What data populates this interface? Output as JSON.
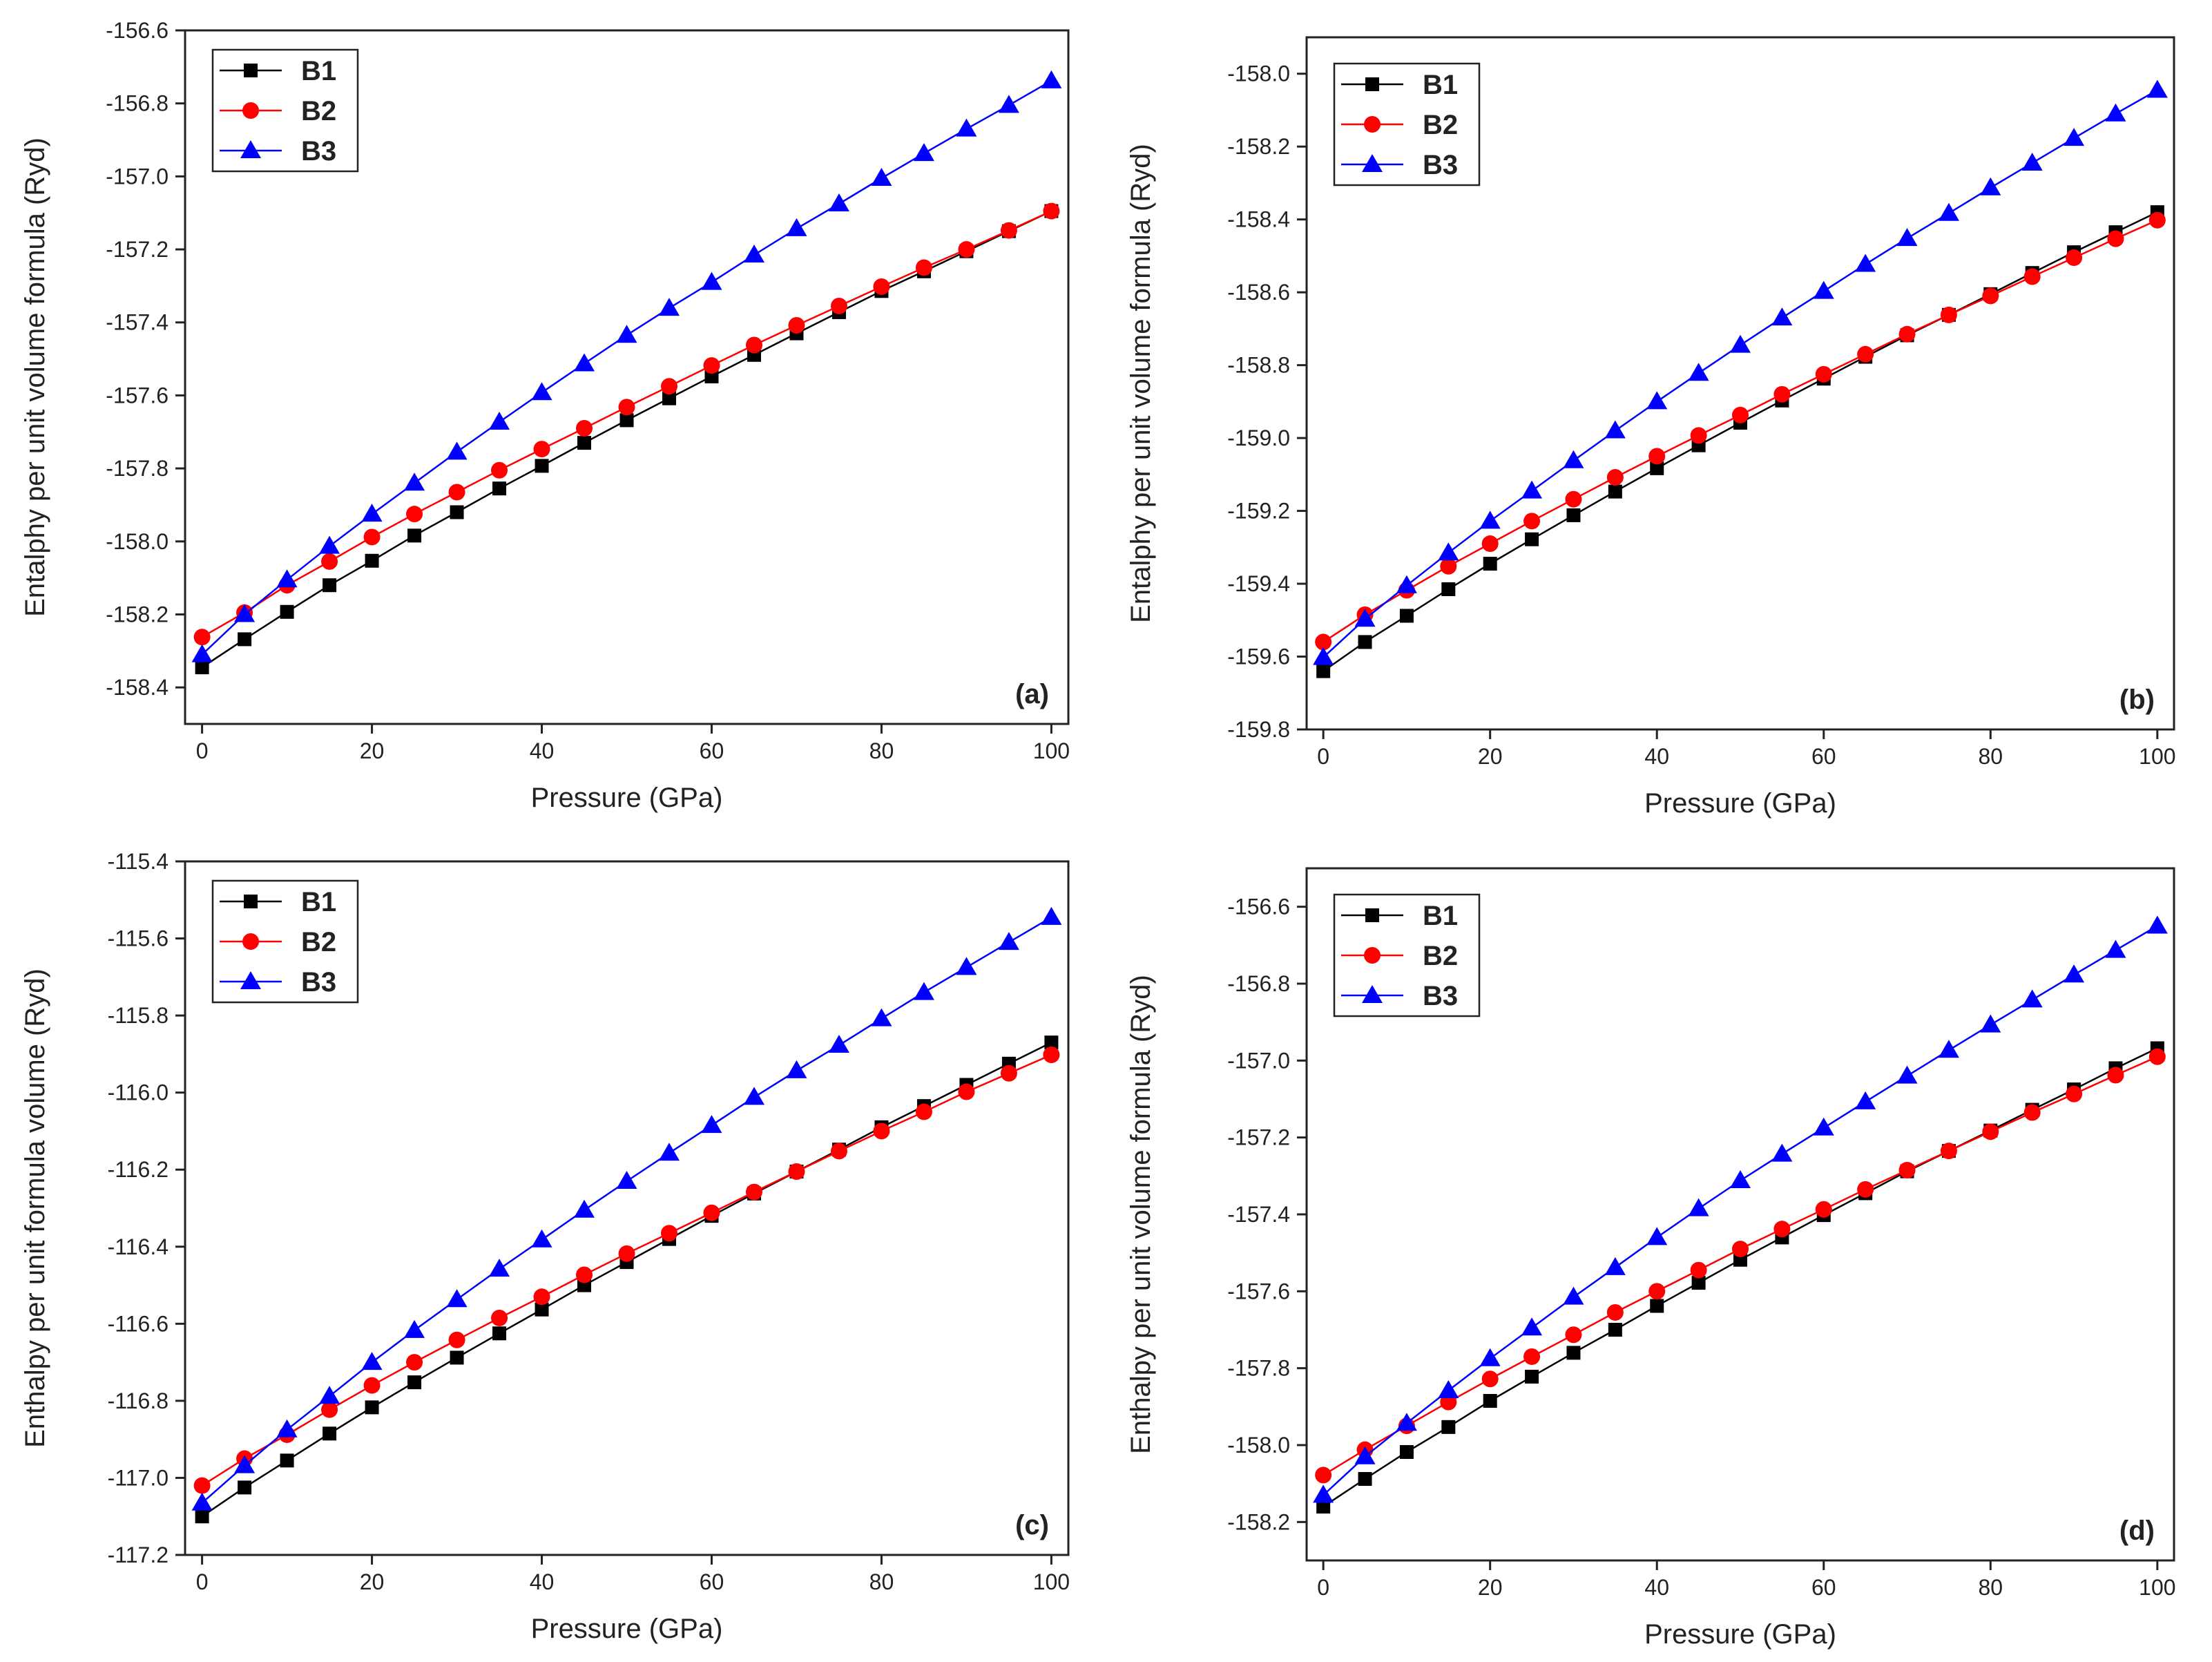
{
  "series_styles": [
    {
      "name": "B1",
      "color": "#000000",
      "marker": "square"
    },
    {
      "name": "B2",
      "color": "#ff0000",
      "marker": "circle"
    },
    {
      "name": "B3",
      "color": "#0000ff",
      "marker": "triangle"
    }
  ],
  "chart_data": [
    {
      "type": "line",
      "panel_label": "(a)",
      "xlabel": "Pressure (GPa)",
      "ylabel": "Entalphy per unit volume formula (Ryd)",
      "xlim": [
        -2,
        102
      ],
      "ylim": [
        -158.5,
        -156.6
      ],
      "xticks": [
        0,
        20,
        40,
        60,
        80,
        100
      ],
      "yticks": [
        -158.4,
        -158.2,
        -158.0,
        -157.8,
        -157.6,
        -157.4,
        -157.2,
        -157.0,
        -156.8,
        -156.6
      ],
      "legend": "top-left",
      "x": [
        0,
        5,
        10,
        15,
        20,
        25,
        30,
        35,
        40,
        45,
        50,
        55,
        60,
        65,
        70,
        75,
        80,
        85,
        90,
        95,
        100
      ],
      "series": [
        {
          "name": "B1",
          "values": [
            -158.345,
            -158.268,
            -158.193,
            -158.12,
            -158.053,
            -157.984,
            -157.92,
            -157.855,
            -157.793,
            -157.73,
            -157.668,
            -157.608,
            -157.548,
            -157.489,
            -157.43,
            -157.372,
            -157.314,
            -157.26,
            -157.205,
            -157.15,
            -157.095
          ]
        },
        {
          "name": "B2",
          "values": [
            -158.262,
            -158.195,
            -158.12,
            -158.055,
            -157.988,
            -157.925,
            -157.865,
            -157.805,
            -157.747,
            -157.69,
            -157.632,
            -157.575,
            -157.518,
            -157.462,
            -157.408,
            -157.355,
            -157.302,
            -157.25,
            -157.2,
            -157.148,
            -157.095
          ]
        },
        {
          "name": "B3",
          "values": [
            -158.31,
            -158.2,
            -158.105,
            -158.013,
            -157.925,
            -157.84,
            -157.755,
            -157.673,
            -157.592,
            -157.513,
            -157.435,
            -157.361,
            -157.29,
            -157.215,
            -157.143,
            -157.075,
            -157.005,
            -156.937,
            -156.87,
            -156.805,
            -156.738
          ]
        }
      ]
    },
    {
      "type": "line",
      "panel_label": "(b)",
      "xlabel": "Pressure (GPa)",
      "ylabel": "Entalphy per unit volume formula (Ryd)",
      "xlim": [
        -2,
        102
      ],
      "ylim": [
        -159.8,
        -157.9
      ],
      "xticks": [
        0,
        20,
        40,
        60,
        80,
        100
      ],
      "yticks": [
        -159.8,
        -159.6,
        -159.4,
        -159.2,
        -159.0,
        -158.8,
        -158.6,
        -158.4,
        -158.2,
        -158.0
      ],
      "legend": "top-left",
      "x": [
        0,
        5,
        10,
        15,
        20,
        25,
        30,
        35,
        40,
        45,
        50,
        55,
        60,
        65,
        70,
        75,
        80,
        85,
        90,
        95,
        100
      ],
      "series": [
        {
          "name": "B1",
          "values": [
            -159.64,
            -159.56,
            -159.488,
            -159.415,
            -159.345,
            -159.278,
            -159.212,
            -159.147,
            -159.083,
            -159.02,
            -158.958,
            -158.897,
            -158.837,
            -158.777,
            -158.718,
            -158.662,
            -158.605,
            -158.547,
            -158.49,
            -158.435,
            -158.38
          ]
        },
        {
          "name": "B2",
          "values": [
            -159.56,
            -159.485,
            -159.418,
            -159.352,
            -159.29,
            -159.228,
            -159.168,
            -159.108,
            -159.05,
            -158.993,
            -158.937,
            -158.88,
            -158.825,
            -158.77,
            -158.715,
            -158.662,
            -158.61,
            -158.557,
            -158.505,
            -158.453,
            -158.402
          ]
        },
        {
          "name": "B3",
          "values": [
            -159.602,
            -159.497,
            -159.405,
            -159.315,
            -159.228,
            -159.145,
            -159.062,
            -158.98,
            -158.9,
            -158.822,
            -158.745,
            -158.67,
            -158.597,
            -158.523,
            -158.452,
            -158.383,
            -158.313,
            -158.245,
            -158.177,
            -158.11,
            -158.045
          ]
        }
      ]
    },
    {
      "type": "line",
      "panel_label": "(c)",
      "xlabel": "Pressure (GPa)",
      "ylabel": "Enthalpy per unit formula volume (Ryd)",
      "xlim": [
        -2,
        102
      ],
      "ylim": [
        -117.2,
        -115.4
      ],
      "xticks": [
        0,
        20,
        40,
        60,
        80,
        100
      ],
      "yticks": [
        -117.2,
        -117.0,
        -116.8,
        -116.6,
        -116.4,
        -116.2,
        -116.0,
        -115.8,
        -115.6,
        -115.4
      ],
      "legend": "top-left",
      "x": [
        0,
        5,
        10,
        15,
        20,
        25,
        30,
        35,
        40,
        45,
        50,
        55,
        60,
        65,
        70,
        75,
        80,
        85,
        90,
        95,
        100
      ],
      "series": [
        {
          "name": "B1",
          "values": [
            -117.1,
            -117.025,
            -116.955,
            -116.885,
            -116.817,
            -116.752,
            -116.688,
            -116.625,
            -116.563,
            -116.5,
            -116.44,
            -116.38,
            -116.32,
            -116.262,
            -116.205,
            -116.148,
            -116.09,
            -116.035,
            -115.98,
            -115.925,
            -115.87
          ]
        },
        {
          "name": "B2",
          "values": [
            -117.02,
            -116.95,
            -116.888,
            -116.823,
            -116.76,
            -116.7,
            -116.642,
            -116.585,
            -116.53,
            -116.473,
            -116.418,
            -116.365,
            -116.312,
            -116.258,
            -116.205,
            -116.152,
            -116.1,
            -116.05,
            -115.998,
            -115.95,
            -115.902
          ]
        },
        {
          "name": "B3",
          "values": [
            -117.065,
            -116.968,
            -116.875,
            -116.788,
            -116.7,
            -116.617,
            -116.537,
            -116.458,
            -116.382,
            -116.305,
            -116.23,
            -116.157,
            -116.085,
            -116.012,
            -115.943,
            -115.877,
            -115.808,
            -115.74,
            -115.675,
            -115.61,
            -115.545
          ]
        }
      ]
    },
    {
      "type": "line",
      "panel_label": "(d)",
      "xlabel": "Pressure (GPa)",
      "ylabel": "Enthalpy per unit volume formula (Ryd)",
      "xlim": [
        -2,
        102
      ],
      "ylim": [
        -158.3,
        -156.5
      ],
      "xticks": [
        0,
        20,
        40,
        60,
        80,
        100
      ],
      "yticks": [
        -158.2,
        -158.0,
        -157.8,
        -157.6,
        -157.4,
        -157.2,
        -157.0,
        -156.8,
        -156.6
      ],
      "legend": "top-left",
      "x": [
        0,
        5,
        10,
        15,
        20,
        25,
        30,
        35,
        40,
        45,
        50,
        55,
        60,
        65,
        70,
        75,
        80,
        85,
        90,
        95,
        100
      ],
      "series": [
        {
          "name": "B1",
          "values": [
            -158.16,
            -158.088,
            -158.018,
            -157.953,
            -157.885,
            -157.822,
            -157.76,
            -157.7,
            -157.638,
            -157.578,
            -157.518,
            -157.46,
            -157.402,
            -157.345,
            -157.288,
            -157.235,
            -157.182,
            -157.128,
            -157.075,
            -157.02,
            -156.968
          ]
        },
        {
          "name": "B2",
          "values": [
            -158.078,
            -158.012,
            -157.95,
            -157.888,
            -157.828,
            -157.77,
            -157.713,
            -157.655,
            -157.6,
            -157.545,
            -157.49,
            -157.438,
            -157.387,
            -157.335,
            -157.285,
            -157.235,
            -157.185,
            -157.135,
            -157.087,
            -157.038,
            -156.99
          ]
        },
        {
          "name": "B3",
          "values": [
            -158.13,
            -158.03,
            -157.943,
            -157.858,
            -157.775,
            -157.695,
            -157.615,
            -157.538,
            -157.46,
            -157.385,
            -157.312,
            -157.243,
            -157.175,
            -157.107,
            -157.04,
            -156.973,
            -156.907,
            -156.842,
            -156.777,
            -156.713,
            -156.65
          ]
        }
      ]
    }
  ]
}
